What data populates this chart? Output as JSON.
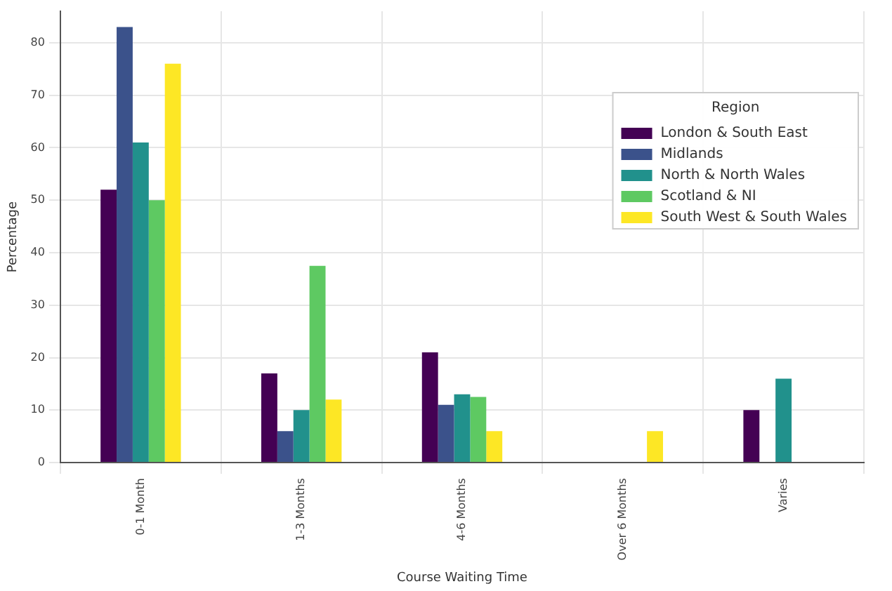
{
  "chart_data": {
    "type": "bar",
    "xlabel": "Course Waiting Time",
    "ylabel": "Percentage",
    "legend_title": "Region",
    "categories": [
      "0-1 Month",
      "1-3 Months",
      "4-6 Months",
      "Over 6 Months",
      "Varies"
    ],
    "series": [
      {
        "name": "London & South East",
        "color": "#440154",
        "values": [
          52,
          17,
          21,
          0,
          10
        ]
      },
      {
        "name": "Midlands",
        "color": "#3b528b",
        "values": [
          83,
          6,
          11,
          0,
          0
        ]
      },
      {
        "name": "North & North Wales",
        "color": "#21918c",
        "values": [
          61,
          10,
          13,
          0,
          16
        ]
      },
      {
        "name": "Scotland & NI",
        "color": "#5ec962",
        "values": [
          50,
          37.5,
          12.5,
          0,
          0
        ]
      },
      {
        "name": "South West & South Wales",
        "color": "#fde725",
        "values": [
          76,
          12,
          6,
          6,
          0
        ]
      }
    ],
    "ylim": [
      0,
      86
    ],
    "yticks": [
      0,
      10,
      20,
      30,
      40,
      50,
      60,
      70,
      80
    ],
    "grid": true,
    "legend": "top right"
  }
}
